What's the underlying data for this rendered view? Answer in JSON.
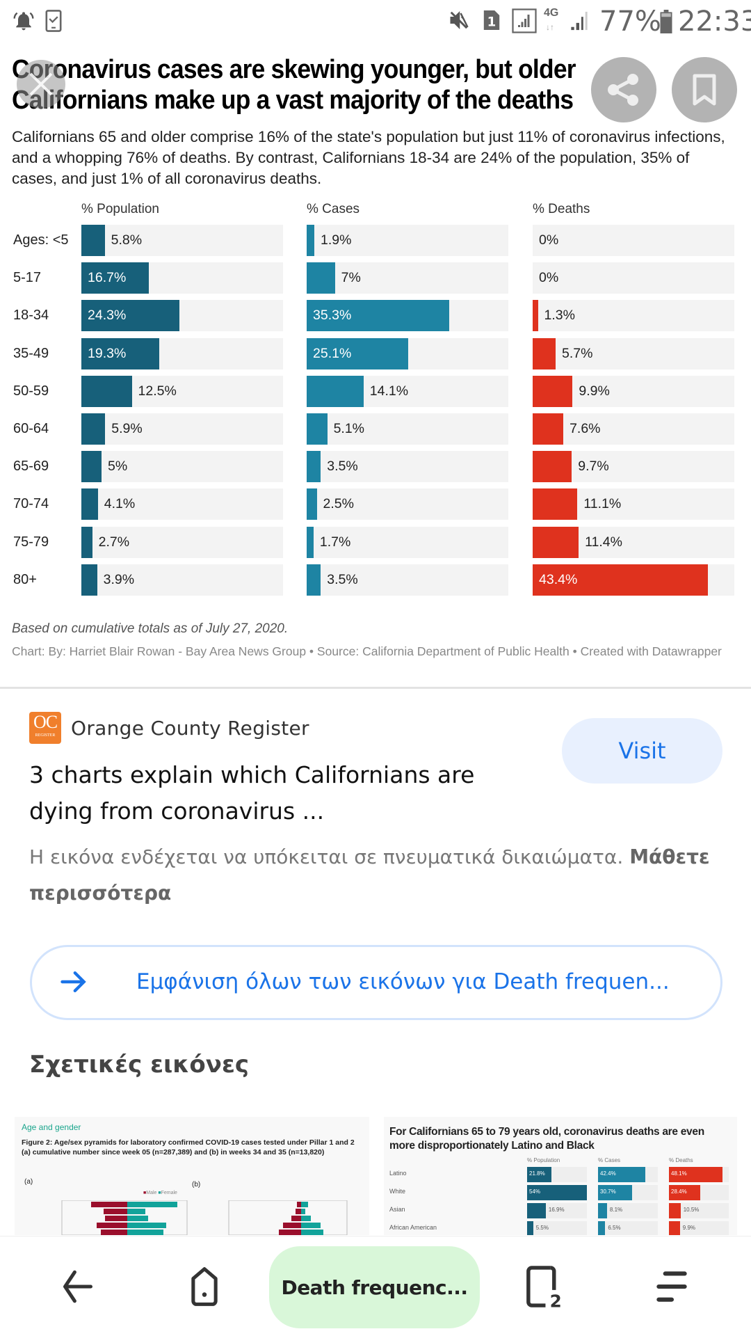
{
  "status_bar": {
    "battery_percent": "77%",
    "time": "22:33",
    "sim_label": "1",
    "network": "4G",
    "icons": [
      "alarm-bell-icon",
      "phone-check-icon",
      "mute-icon",
      "sim-card-icon",
      "signal-icon",
      "network-4g-icon",
      "signal-weak-icon",
      "battery-icon"
    ]
  },
  "article": {
    "headline": "Coronavirus cases are skewing younger, but older Californians make up a vast majority of the deaths",
    "subtitle": "Californians 65 and older comprise 16% of the state's population but just 11% of coronavirus infections, and a whopping 76% of deaths. By contrast, Californians 18-34 are 24% of the population, 35% of cases, and just 1% of all coronavirus deaths.",
    "footnote": "Based on cumulative totals as of July 27, 2020.",
    "credit": "Chart: By: Harriet Blair Rowan - Bay Area News Group • Source: California Department of Public Health • Created with Datawrapper"
  },
  "chart_data": {
    "type": "bar",
    "orientation": "horizontal",
    "title": "Coronavirus cases are skewing younger, but older Californians make up a vast majority of the deaths",
    "categories": [
      "Ages: <5",
      "5-17",
      "18-34",
      "35-49",
      "50-59",
      "60-64",
      "65-69",
      "70-74",
      "75-79",
      "80+"
    ],
    "xlim": [
      0,
      50
    ],
    "series": [
      {
        "name": "% Population",
        "color": "#17607a",
        "values": [
          5.8,
          16.7,
          24.3,
          19.3,
          12.5,
          5.9,
          5,
          4.1,
          2.7,
          3.9
        ],
        "labels": [
          "5.8%",
          "16.7%",
          "24.3%",
          "19.3%",
          "12.5%",
          "5.9%",
          "5%",
          "4.1%",
          "2.7%",
          "3.9%"
        ]
      },
      {
        "name": "% Cases",
        "color": "#1e84a3",
        "values": [
          1.9,
          7,
          35.3,
          25.1,
          14.1,
          5.1,
          3.5,
          2.5,
          1.7,
          3.5
        ],
        "labels": [
          "1.9%",
          "7%",
          "35.3%",
          "25.1%",
          "14.1%",
          "5.1%",
          "3.5%",
          "2.5%",
          "1.7%",
          "3.5%"
        ]
      },
      {
        "name": "% Deaths",
        "color": "#df321e",
        "values": [
          0,
          0,
          1.3,
          5.7,
          9.9,
          7.6,
          9.7,
          11.1,
          11.4,
          43.4
        ],
        "labels": [
          "0%",
          "0%",
          "1.3%",
          "5.7%",
          "9.9%",
          "7.6%",
          "9.7%",
          "11.1%",
          "11.4%",
          "43.4%"
        ]
      }
    ],
    "track_color": "#f3f3f3",
    "legend": "none",
    "grid": false
  },
  "source_card": {
    "logo_text": "OC",
    "logo_subtext": "REGISTER",
    "source_name": "Orange County Register",
    "page_title": "3 charts explain which Californians are dying from coronavirus ...",
    "visit_label": "Visit",
    "copyright_notice": "Η εικόνα ενδέχεται να υπόκειται σε πνευματικά δικαιώματα.",
    "learn_more": "Μάθετε περισσότερα"
  },
  "show_all": {
    "label": "Εμφάνιση όλων των εικόνων για Death frequen..."
  },
  "related": {
    "heading": "Σχετικές εικόνες",
    "thumb1": {
      "tag": "Age and gender",
      "caption": "Figure 2: Age/sex pyramids for laboratory confirmed COVID-19 cases tested under Pillar 1 and 2 (a) cumulative number since week 05 (n=287,389) and (b) in weeks 34 and 35 (n=13,820)",
      "panel_a": "(a)",
      "panel_b": "(b)",
      "legend_male": "Male",
      "legend_female": "Female"
    },
    "thumb2": {
      "title": "For Californians 65 to 79 years old, coronavirus deaths are even more disproportionately Latino and Black",
      "col_headers": [
        "% Population",
        "% Cases",
        "% Deaths"
      ],
      "rows": [
        {
          "label": "Latino",
          "values": [
            "21.8%",
            "42.4%",
            "48.1%"
          ],
          "nums": [
            21.8,
            42.4,
            48.1
          ]
        },
        {
          "label": "White",
          "values": [
            "54%",
            "30.7%",
            "28.4%"
          ],
          "nums": [
            54,
            30.7,
            28.4
          ]
        },
        {
          "label": "Asian",
          "values": [
            "16.9%",
            "8.1%",
            "10.5%"
          ],
          "nums": [
            16.9,
            8.1,
            10.5
          ]
        },
        {
          "label": "African American",
          "values": [
            "5.5%",
            "6.5%",
            "9.9%"
          ],
          "nums": [
            5.5,
            6.5,
            9.9
          ]
        }
      ]
    }
  },
  "nav_bar": {
    "search_pill": "Death frequenc...",
    "tab_count": "2"
  }
}
